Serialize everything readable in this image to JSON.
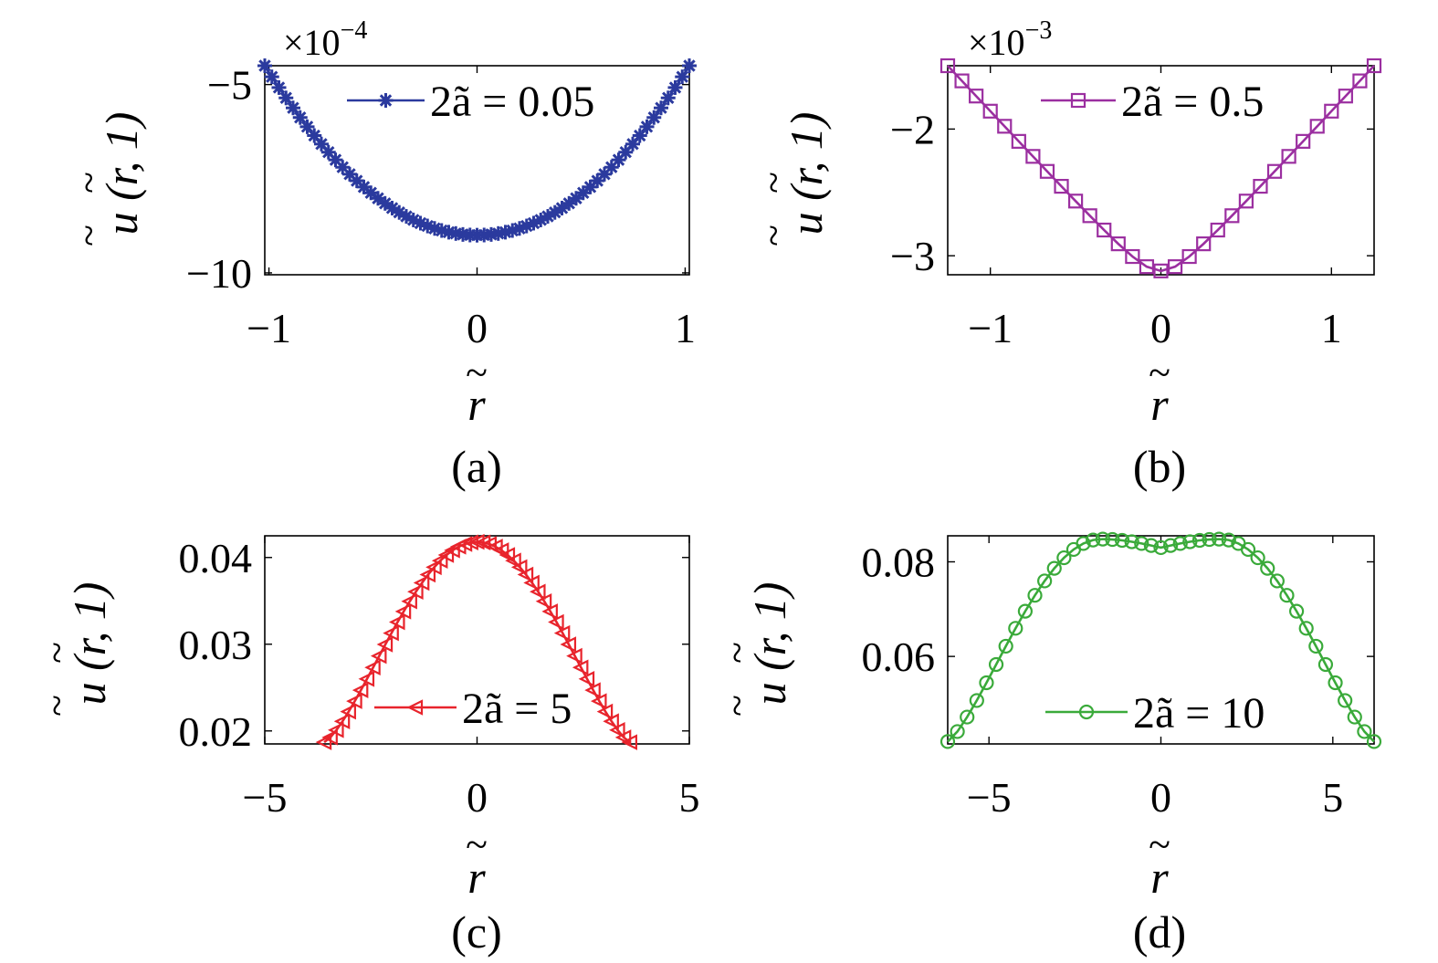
{
  "figure": {
    "panels": [
      "a",
      "b",
      "c",
      "d"
    ]
  },
  "chart_data": [
    {
      "id": "a",
      "type": "line",
      "panel_label": "(a)",
      "xlabel": "r",
      "xlabel_tilde": "~",
      "ylabel": "u (r, 1)",
      "y_multiplier": "×10",
      "y_multiplier_exp": "−4",
      "xlim": [
        -1.02,
        1.02
      ],
      "ylim": [
        -10.05,
        -4.5
      ],
      "xticks": [
        -1,
        0,
        1
      ],
      "xtick_labels": [
        "−1",
        "0",
        "1"
      ],
      "yticks": [
        -10,
        -5
      ],
      "ytick_labels": [
        "−10",
        "−5"
      ],
      "legend_text": "2ã = 0.05",
      "legend_position": "top-right",
      "marker": "asterisk",
      "color": "#2b3a9e",
      "curve": {
        "kind": "parabola",
        "xmax": 1.02,
        "ymin": -9.0,
        "yedge": -4.5
      },
      "n_points": 61
    },
    {
      "id": "b",
      "type": "line",
      "panel_label": "(b)",
      "xlabel": "r",
      "xlabel_tilde": "~",
      "ylabel": "u (r, 1)",
      "y_multiplier": "×10",
      "y_multiplier_exp": "−3",
      "xlim": [
        -1.25,
        1.25
      ],
      "ylim": [
        -3.15,
        -1.5
      ],
      "xticks": [
        -1,
        0,
        1
      ],
      "xtick_labels": [
        "−1",
        "0",
        "1"
      ],
      "yticks": [
        -3,
        -2
      ],
      "ytick_labels": [
        "−3",
        "−2"
      ],
      "legend_text": "2ã = 0.5",
      "legend_position": "top-right",
      "marker": "square",
      "color": "#9b2fa0",
      "curve": {
        "kind": "vee",
        "xmax": 1.25,
        "ymin": -3.12,
        "yedge": -1.5
      },
      "n_points": 31
    },
    {
      "id": "c",
      "type": "line",
      "panel_label": "(c)",
      "xlabel": "r",
      "xlabel_tilde": "~",
      "ylabel": "u (r, 1)",
      "xlim": [
        -5,
        5
      ],
      "ylim": [
        0.0185,
        0.0425
      ],
      "xticks": [
        -5,
        0,
        5
      ],
      "xtick_labels": [
        "−5",
        "0",
        "5"
      ],
      "yticks": [
        0.02,
        0.03,
        0.04
      ],
      "ytick_labels": [
        "0.02",
        "0.03",
        "0.04"
      ],
      "legend_text": "2ã = 5",
      "legend_position": "bottom-center",
      "marker": "triangle-left",
      "color": "#e8242c",
      "curve": {
        "kind": "dome",
        "xmax": 3.6,
        "ymax": 0.0418,
        "yedge": 0.0187
      },
      "n_points": 51
    },
    {
      "id": "d",
      "type": "line",
      "panel_label": "(d)",
      "xlabel": "r",
      "xlabel_tilde": "~",
      "ylabel": "u (r, 1)",
      "xlim": [
        -6.2,
        6.2
      ],
      "ylim": [
        0.0415,
        0.0855
      ],
      "xticks": [
        -5,
        0,
        5
      ],
      "xtick_labels": [
        "−5",
        "0",
        "5"
      ],
      "yticks": [
        0.06,
        0.08
      ],
      "ytick_labels": [
        "0.06",
        "0.08"
      ],
      "legend_text": "2ã = 10",
      "legend_position": "bottom-center",
      "marker": "circle",
      "color": "#3aaa3a",
      "curve": {
        "kind": "twinpeak",
        "xmax": 6.2,
        "ypeak": 0.0848,
        "ydip": 0.083,
        "yedge": 0.042
      },
      "n_points": 45
    }
  ]
}
